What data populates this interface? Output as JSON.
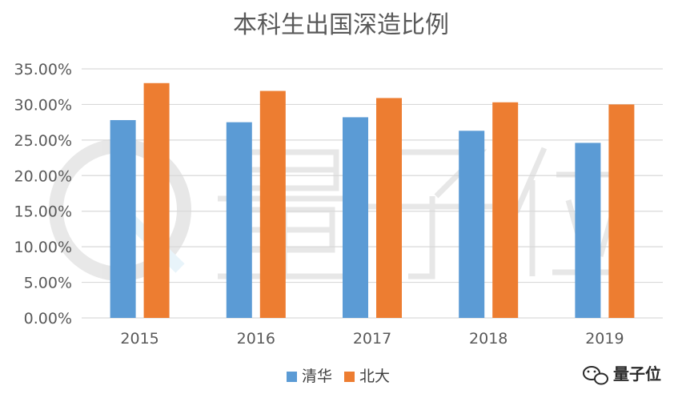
{
  "chart_data": {
    "type": "bar",
    "title": "本科生出国深造比例",
    "categories": [
      "2015",
      "2016",
      "2017",
      "2018",
      "2019"
    ],
    "series": [
      {
        "name": "清华",
        "values": [
          27.8,
          27.5,
          28.2,
          26.3,
          24.6
        ],
        "color": "#5B9BD5"
      },
      {
        "name": "北大",
        "values": [
          33.0,
          31.9,
          30.9,
          30.3,
          30.0
        ],
        "color": "#ED7D31"
      }
    ],
    "ylim": [
      0,
      35
    ],
    "yticks": [
      "0.00%",
      "5.00%",
      "10.00%",
      "15.00%",
      "20.00%",
      "25.00%",
      "30.00%",
      "35.00%"
    ],
    "xlabel": "",
    "ylabel": "",
    "grid": true,
    "legend_position": "bottom"
  },
  "watermark": {
    "text": "量子位",
    "icon": "wechat-icon"
  },
  "colors": {
    "grid": "#D9D9D9",
    "text": "#595959"
  }
}
